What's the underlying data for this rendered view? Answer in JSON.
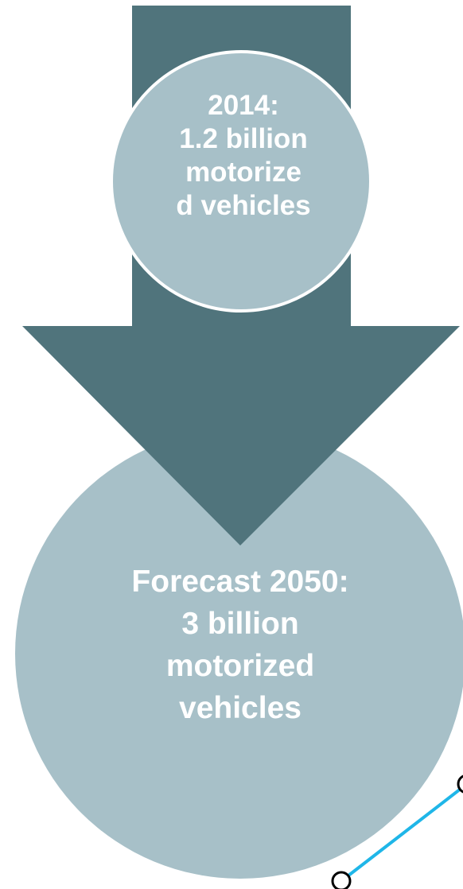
{
  "diagram": {
    "top_node": {
      "lines": [
        "2014:",
        "1.2 billion",
        "motorize",
        "d vehicles"
      ]
    },
    "bottom_node": {
      "lines": [
        "Forecast 2050:",
        "3 billion",
        "motorized",
        "vehicles"
      ]
    },
    "colors": {
      "arrow": "#50747c",
      "circle": "#a7c0c8",
      "circle_border": "#ffffff",
      "connector_line": "#1fb6e8",
      "connector_handle": "#000000",
      "text": "#ffffff"
    }
  }
}
